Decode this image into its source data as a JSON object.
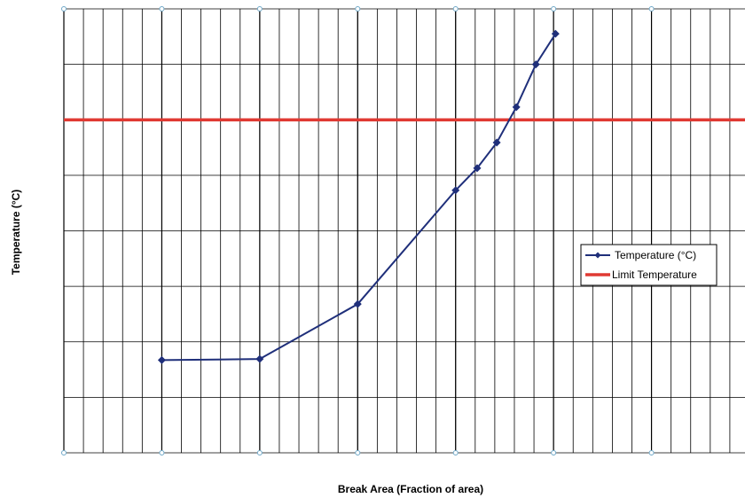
{
  "chart_data": {
    "type": "line",
    "title": "",
    "xlabel": "Break Area (Fraction of area)",
    "ylabel": "Temperature (°C)",
    "xlim": [
      0,
      1.05
    ],
    "ylim": [
      0,
      8
    ],
    "grid": true,
    "legend_position": "right",
    "series": [
      {
        "name": "Temperature (°C)",
        "color": "#1f2f7a",
        "marker": "diamond",
        "x": [
          0.15,
          0.3,
          0.45,
          0.6,
          0.633,
          0.663,
          0.693,
          0.723,
          0.753
        ],
        "y": [
          1.67,
          1.69,
          2.68,
          4.73,
          5.13,
          5.59,
          6.23,
          7.0,
          7.55
        ]
      },
      {
        "name": "Limit Temperature",
        "color": "#e03a33",
        "x": [
          0,
          1.05
        ],
        "y": [
          6.0,
          6.0
        ]
      }
    ]
  }
}
